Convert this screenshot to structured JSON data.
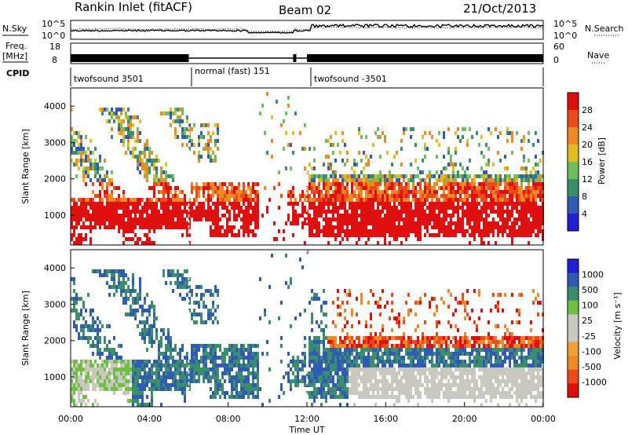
{
  "header": {
    "station": "Rankin Inlet (fitACF)",
    "beam": "Beam 02",
    "date": "21/Oct/2013"
  },
  "top_panels": {
    "nsky_label": "N.Sky",
    "nsearch_label": "N.Search",
    "freq_label_1": "Freq.",
    "freq_label_2": "[MHz]",
    "nave_label": "Nave",
    "cpid_label": "CPID",
    "left_ticks_noise": [
      "10^5",
      "10^0"
    ],
    "right_ticks_noise": [
      "10^5",
      "10^0"
    ],
    "left_ticks_freq": [
      "18",
      "8"
    ],
    "right_ticks_nave": [
      "60",
      "0"
    ],
    "cpid_segments": [
      {
        "label": "twofsound 3501",
        "start": 0.0,
        "end": 6.0
      },
      {
        "label": "normal (fast) 151",
        "start": 6.0,
        "end": 12.0
      },
      {
        "label": "twofsound -3501",
        "start": 12.0,
        "end": 24.0
      }
    ]
  },
  "colors": {
    "power": [
      "#1f1fd6",
      "#2f5bb5",
      "#3a8f6a",
      "#6fbf5a",
      "#e0c020",
      "#f08a20",
      "#ee4a18",
      "#e01010"
    ],
    "velocity": [
      "#e01010",
      "#ee4a18",
      "#f08a20",
      "#f0a030",
      "#c8c8c0",
      "#c8c8c0",
      "#6fc040",
      "#3a8f6a",
      "#2f5bb5",
      "#1f1fd6"
    ]
  },
  "chart_data": [
    {
      "type": "heatmap",
      "title": "Power",
      "ylabel": "Slant Range [km]",
      "xlabel": "",
      "colorbar_label": "Power [dB]",
      "colorbar_ticks": [
        "28",
        "24",
        "20",
        "16",
        "12",
        "8",
        "4"
      ],
      "y_ticks": [
        "4000",
        "3000",
        "2000",
        "1000"
      ],
      "ylim": [
        180,
        4500
      ],
      "xlim": [
        0,
        24
      ]
    },
    {
      "type": "heatmap",
      "title": "Velocity",
      "ylabel": "Slant Range [km]",
      "xlabel": "Time UT",
      "colorbar_label": "Velocity [m s⁻¹]",
      "colorbar_ticks": [
        "1000",
        "500",
        "100",
        "25",
        "-25",
        "-100",
        "-500",
        "-1000"
      ],
      "y_ticks": [
        "4000",
        "3000",
        "2000",
        "1000"
      ],
      "x_ticks": [
        "00:00",
        "04:00",
        "08:00",
        "12:00",
        "16:00",
        "20:00",
        "00:00"
      ],
      "ylim": [
        180,
        4500
      ],
      "xlim": [
        0,
        24
      ]
    }
  ]
}
